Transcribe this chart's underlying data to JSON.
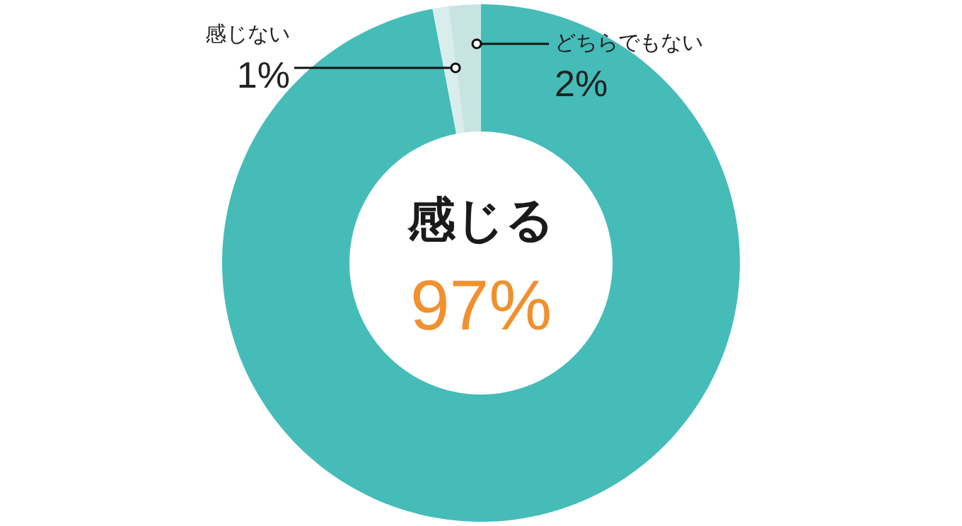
{
  "chart_data": {
    "type": "donut",
    "categories": [
      "感じる",
      "感じない",
      "どちらでもない"
    ],
    "values": [
      97,
      1,
      2
    ],
    "colors": [
      "#45bcb8",
      "#d9eeec",
      "#c8e4e2"
    ],
    "value_labels": [
      "97%",
      "1%",
      "2%"
    ],
    "legend": false
  }
}
